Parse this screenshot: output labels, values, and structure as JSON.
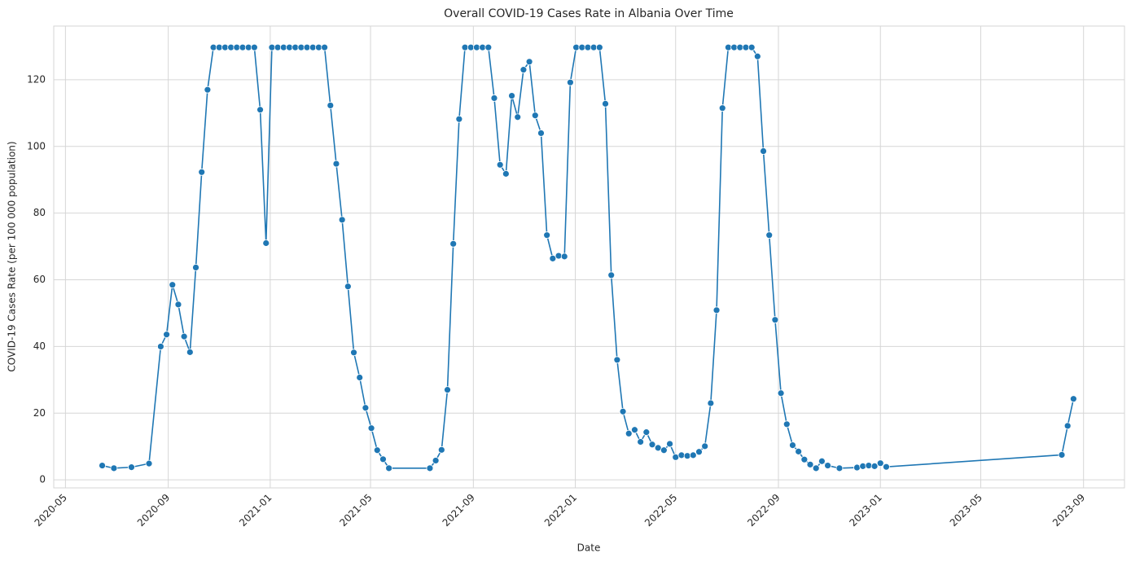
{
  "chart_data": {
    "type": "line",
    "title": "Overall COVID-19 Cases Rate in Albania Over Time",
    "x_label": "Date",
    "y_label": "COVID-19 Cases Rate (per 100 000 population)",
    "x": [
      "2020-06-14",
      "2020-06-28",
      "2020-07-19",
      "2020-08-09",
      "2020-08-23",
      "2020-08-30",
      "2020-09-06",
      "2020-09-13",
      "2020-09-20",
      "2020-09-27",
      "2020-10-04",
      "2020-10-11",
      "2020-10-18",
      "2020-10-25",
      "2020-11-01",
      "2020-11-08",
      "2020-11-15",
      "2020-11-22",
      "2020-11-29",
      "2020-12-06",
      "2020-12-13",
      "2020-12-20",
      "2020-12-27",
      "2021-01-03",
      "2021-01-10",
      "2021-01-17",
      "2021-01-24",
      "2021-01-31",
      "2021-02-07",
      "2021-02-14",
      "2021-02-21",
      "2021-02-28",
      "2021-03-07",
      "2021-03-14",
      "2021-03-21",
      "2021-03-28",
      "2021-04-04",
      "2021-04-11",
      "2021-04-18",
      "2021-04-25",
      "2021-05-02",
      "2021-05-09",
      "2021-05-16",
      "2021-05-23",
      "2021-07-11",
      "2021-07-18",
      "2021-07-25",
      "2021-08-01",
      "2021-08-08",
      "2021-08-15",
      "2021-08-22",
      "2021-08-29",
      "2021-09-05",
      "2021-09-12",
      "2021-09-19",
      "2021-09-26",
      "2021-10-03",
      "2021-10-10",
      "2021-10-17",
      "2021-10-24",
      "2021-10-31",
      "2021-11-07",
      "2021-11-14",
      "2021-11-21",
      "2021-11-28",
      "2021-12-05",
      "2021-12-12",
      "2021-12-19",
      "2021-12-26",
      "2022-01-02",
      "2022-01-09",
      "2022-01-16",
      "2022-01-23",
      "2022-01-30",
      "2022-02-06",
      "2022-02-13",
      "2022-02-20",
      "2022-02-27",
      "2022-03-06",
      "2022-03-13",
      "2022-03-20",
      "2022-03-27",
      "2022-04-03",
      "2022-04-10",
      "2022-04-17",
      "2022-04-24",
      "2022-05-01",
      "2022-05-08",
      "2022-05-15",
      "2022-05-22",
      "2022-05-29",
      "2022-06-05",
      "2022-06-12",
      "2022-06-19",
      "2022-06-26",
      "2022-07-03",
      "2022-07-10",
      "2022-07-17",
      "2022-07-24",
      "2022-07-31",
      "2022-08-07",
      "2022-08-14",
      "2022-08-21",
      "2022-08-28",
      "2022-09-04",
      "2022-09-11",
      "2022-09-18",
      "2022-09-25",
      "2022-10-02",
      "2022-10-09",
      "2022-10-16",
      "2022-10-23",
      "2022-10-30",
      "2022-11-13",
      "2022-12-04",
      "2022-12-11",
      "2022-12-18",
      "2022-12-25",
      "2023-01-01",
      "2023-01-08",
      "2023-08-06",
      "2023-08-13",
      "2023-08-20"
    ],
    "series": [
      {
        "color": "#1f77b4",
        "values": [
          4.3,
          3.5,
          3.8,
          4.9,
          40.0,
          43.6,
          58.5,
          52.6,
          43.0,
          38.3,
          63.7,
          92.3,
          117.0,
          129.7,
          129.7,
          129.7,
          129.7,
          129.7,
          129.7,
          129.7,
          129.7,
          111.0,
          71.0,
          129.7,
          129.7,
          129.7,
          129.7,
          129.7,
          129.7,
          129.7,
          129.7,
          129.7,
          129.7,
          112.3,
          94.8,
          78.0,
          58.0,
          38.2,
          30.7,
          21.6,
          15.5,
          8.9,
          6.2,
          3.5,
          3.5,
          5.8,
          9.0,
          27.0,
          70.8,
          108.2,
          129.7,
          129.7,
          129.7,
          129.7,
          129.7,
          114.5,
          94.5,
          91.8,
          115.2,
          108.8,
          123.0,
          125.4,
          109.3,
          104.0,
          73.4,
          66.4,
          67.2,
          67.0,
          119.2,
          129.7,
          129.7,
          129.7,
          129.7,
          129.7,
          112.8,
          61.4,
          36.0,
          20.5,
          13.9,
          15.0,
          11.4,
          14.3,
          10.6,
          9.6,
          8.9,
          10.8,
          6.8,
          7.4,
          7.2,
          7.4,
          8.4,
          10.1,
          23.0,
          50.9,
          111.5,
          129.7,
          129.7,
          129.7,
          129.7,
          129.7,
          127.0,
          98.6,
          73.4,
          48.0,
          26.0,
          16.7,
          10.4,
          8.5,
          6.1,
          4.6,
          3.5,
          5.6,
          4.3,
          3.5,
          3.7,
          4.1,
          4.3,
          4.1,
          5.0,
          3.9,
          7.5,
          16.2,
          24.3
        ]
      }
    ],
    "xlim": [
      "2020-04-17",
      "2023-10-20"
    ],
    "xticks": [
      "2020-05",
      "2020-09",
      "2021-01",
      "2021-05",
      "2021-09",
      "2022-01",
      "2022-05",
      "2022-09",
      "2023-01",
      "2023-05",
      "2023-09"
    ],
    "ylim": [
      -2.4,
      136.1
    ],
    "yticks": [
      0,
      20,
      40,
      60,
      80,
      100,
      120
    ],
    "grid": true,
    "markers": true
  }
}
